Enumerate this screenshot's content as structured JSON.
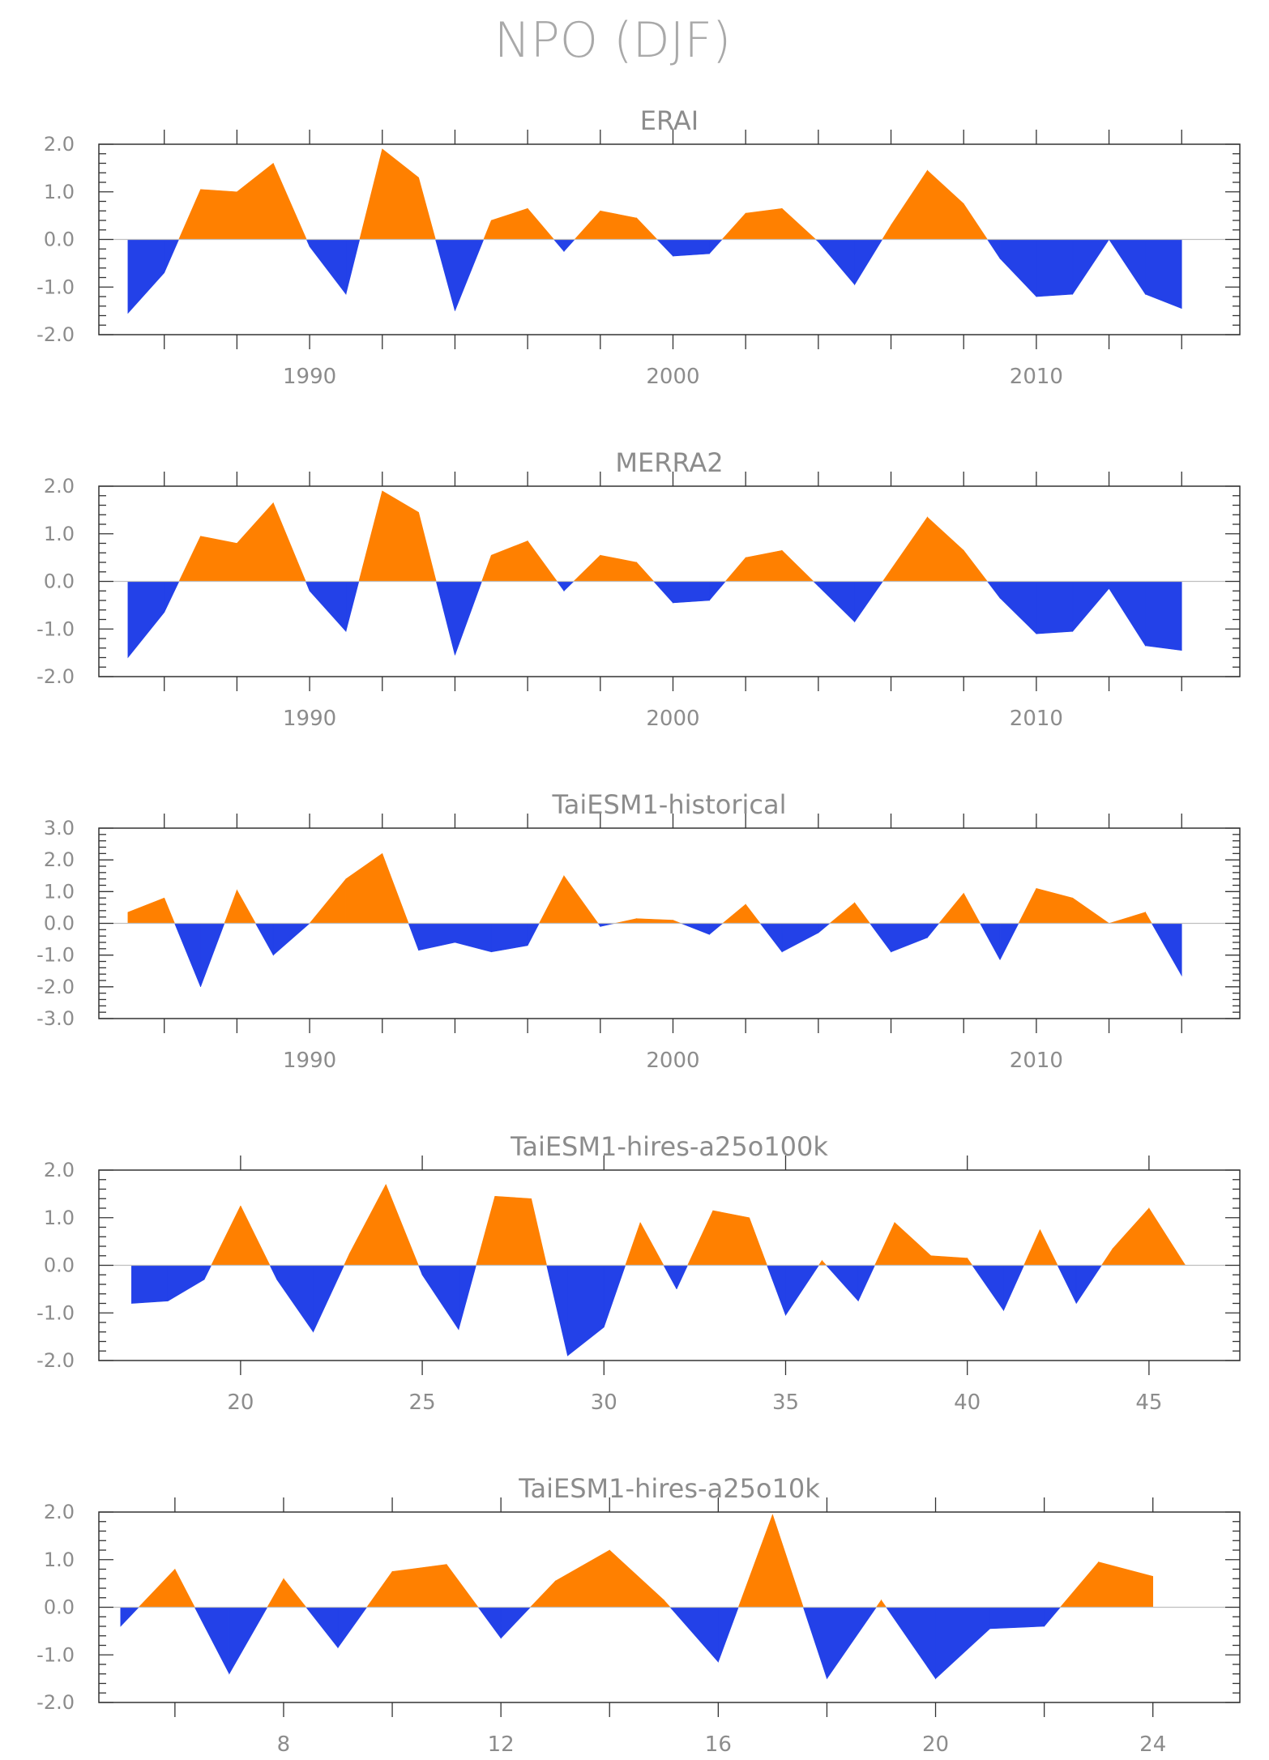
{
  "figure": {
    "title": "NPO (DJF)"
  },
  "colors": {
    "positive": "#ff8000",
    "negative": "#2341e8",
    "text": "#8c8c8c"
  },
  "chart_data": [
    {
      "type": "area",
      "title": "ERAI",
      "xlabel": "",
      "ylabel": "",
      "xlim": [
        1984.2,
        2015.6
      ],
      "ylim": [
        -2.0,
        2.0
      ],
      "yticks": [
        2.0,
        1.0,
        0.0,
        -1.0,
        -2.0
      ],
      "ytick_labels": [
        "2.0",
        "1.0",
        "0.0",
        "-1.0",
        "-2.0"
      ],
      "xticks": [
        1990,
        2000,
        2010
      ],
      "xtick_labels": [
        "1990",
        "2000",
        "2010"
      ],
      "minor_xticks": [
        1986,
        1988,
        1990,
        1992,
        1994,
        1996,
        1998,
        2000,
        2002,
        2004,
        2006,
        2008,
        2010,
        2012,
        2014
      ],
      "x": [
        1985,
        1986,
        1987,
        1988,
        1989,
        1990,
        1991,
        1992,
        1993,
        1994,
        1995,
        1996,
        1997,
        1998,
        1999,
        2000,
        2001,
        2002,
        2003,
        2004,
        2005,
        2006,
        2007,
        2008,
        2009,
        2010,
        2011,
        2012,
        2013,
        2014
      ],
      "values": [
        -1.55,
        -0.7,
        1.05,
        1.0,
        1.6,
        -0.15,
        -1.15,
        1.9,
        1.3,
        -1.5,
        0.4,
        0.65,
        -0.25,
        0.6,
        0.45,
        -0.35,
        -0.3,
        0.55,
        0.65,
        -0.05,
        -0.95,
        0.3,
        1.45,
        0.75,
        -0.4,
        -1.2,
        -1.15,
        0.0,
        -1.15,
        -1.45
      ]
    },
    {
      "type": "area",
      "title": "MERRA2",
      "xlabel": "",
      "ylabel": "",
      "xlim": [
        1984.2,
        2015.6
      ],
      "ylim": [
        -2.0,
        2.0
      ],
      "yticks": [
        2.0,
        1.0,
        0.0,
        -1.0,
        -2.0
      ],
      "ytick_labels": [
        "2.0",
        "1.0",
        "0.0",
        "-1.0",
        "-2.0"
      ],
      "xticks": [
        1990,
        2000,
        2010
      ],
      "xtick_labels": [
        "1990",
        "2000",
        "2010"
      ],
      "minor_xticks": [
        1986,
        1988,
        1990,
        1992,
        1994,
        1996,
        1998,
        2000,
        2002,
        2004,
        2006,
        2008,
        2010,
        2012,
        2014
      ],
      "x": [
        1985,
        1986,
        1987,
        1988,
        1989,
        1990,
        1991,
        1992,
        1993,
        1994,
        1995,
        1996,
        1997,
        1998,
        1999,
        2000,
        2001,
        2002,
        2003,
        2004,
        2005,
        2006,
        2007,
        2008,
        2009,
        2010,
        2011,
        2012,
        2013,
        2014
      ],
      "values": [
        -1.6,
        -0.65,
        0.95,
        0.8,
        1.65,
        -0.2,
        -1.05,
        1.9,
        1.45,
        -1.55,
        0.55,
        0.85,
        -0.2,
        0.55,
        0.4,
        -0.45,
        -0.4,
        0.5,
        0.65,
        -0.1,
        -0.85,
        0.25,
        1.35,
        0.65,
        -0.35,
        -1.1,
        -1.05,
        -0.15,
        -1.35,
        -1.45
      ]
    },
    {
      "type": "area",
      "title": "TaiESM1-historical",
      "xlabel": "",
      "ylabel": "",
      "xlim": [
        1984.2,
        2015.6
      ],
      "ylim": [
        -3.0,
        3.0
      ],
      "yticks": [
        3.0,
        2.0,
        1.0,
        0.0,
        -1.0,
        -2.0,
        -3.0
      ],
      "ytick_labels": [
        "3.0",
        "2.0",
        "1.0",
        "0.0",
        "-1.0",
        "-2.0",
        "-3.0"
      ],
      "xticks": [
        1990,
        2000,
        2010
      ],
      "xtick_labels": [
        "1990",
        "2000",
        "2010"
      ],
      "minor_xticks": [
        1986,
        1988,
        1990,
        1992,
        1994,
        1996,
        1998,
        2000,
        2002,
        2004,
        2006,
        2008,
        2010,
        2012,
        2014
      ],
      "x": [
        1985,
        1986,
        1987,
        1988,
        1989,
        1990,
        1991,
        1992,
        1993,
        1994,
        1995,
        1996,
        1997,
        1998,
        1999,
        2000,
        2001,
        2002,
        2003,
        2004,
        2005,
        2006,
        2007,
        2008,
        2009,
        2010,
        2011,
        2012,
        2013,
        2014
      ],
      "values": [
        0.35,
        0.8,
        -2.0,
        1.05,
        -1.0,
        0.0,
        1.4,
        2.2,
        -0.85,
        -0.6,
        -0.9,
        -0.7,
        1.5,
        -0.1,
        0.15,
        0.1,
        -0.35,
        0.6,
        -0.9,
        -0.3,
        0.65,
        -0.9,
        -0.45,
        0.95,
        -1.15,
        1.1,
        0.8,
        0.0,
        0.35,
        -1.65
      ]
    },
    {
      "type": "area",
      "title": "TaiESM1-hires-a25o100k",
      "xlabel": "",
      "ylabel": "",
      "xlim": [
        16.1,
        47.5
      ],
      "ylim": [
        -2.0,
        2.0
      ],
      "yticks": [
        2.0,
        1.0,
        0.0,
        -1.0,
        -2.0
      ],
      "ytick_labels": [
        "2.0",
        "1.0",
        "0.0",
        "-1.0",
        "-2.0"
      ],
      "xticks": [
        20,
        25,
        30,
        35,
        40,
        45
      ],
      "xtick_labels": [
        "20",
        "25",
        "30",
        "35",
        "40",
        "45"
      ],
      "minor_xticks": [
        20,
        25,
        30,
        35,
        40,
        45
      ],
      "x": [
        17,
        18,
        19,
        20,
        21,
        22,
        23,
        24,
        25,
        26,
        27,
        28,
        29,
        30,
        31,
        32,
        33,
        34,
        35,
        36,
        37,
        38,
        39,
        40,
        41,
        42,
        43,
        44,
        45,
        46
      ],
      "values": [
        -0.8,
        -0.75,
        -0.3,
        1.25,
        -0.3,
        -1.4,
        0.25,
        1.7,
        -0.2,
        -1.35,
        1.45,
        1.4,
        -1.9,
        -1.3,
        0.9,
        -0.5,
        1.15,
        1.0,
        -1.05,
        0.1,
        -0.75,
        0.9,
        0.2,
        0.15,
        -0.95,
        0.75,
        -0.8,
        0.35,
        1.2,
        0.0
      ]
    },
    {
      "type": "area",
      "title": "TaiESM1-hires-a25o10k",
      "xlabel": "",
      "ylabel": "",
      "xlim": [
        4.6,
        25.6
      ],
      "ylim": [
        -2.0,
        2.0
      ],
      "yticks": [
        2.0,
        1.0,
        0.0,
        -1.0,
        -2.0
      ],
      "ytick_labels": [
        "2.0",
        "1.0",
        "0.0",
        "-1.0",
        "-2.0"
      ],
      "xticks": [
        8,
        12,
        16,
        20,
        24
      ],
      "xtick_labels": [
        "8",
        "12",
        "16",
        "20",
        "24"
      ],
      "minor_xticks": [
        6,
        8,
        10,
        12,
        14,
        16,
        18,
        20,
        22,
        24
      ],
      "x": [
        5,
        6,
        7,
        8,
        9,
        10,
        11,
        12,
        13,
        14,
        15,
        16,
        17,
        18,
        19,
        20,
        21,
        22,
        23,
        24
      ],
      "values": [
        -0.4,
        0.8,
        -1.4,
        0.6,
        -0.85,
        0.75,
        0.9,
        -0.65,
        0.55,
        1.2,
        0.15,
        -1.15,
        1.95,
        -1.5,
        0.15,
        -1.5,
        -0.45,
        -0.4,
        0.95,
        0.65
      ]
    }
  ]
}
